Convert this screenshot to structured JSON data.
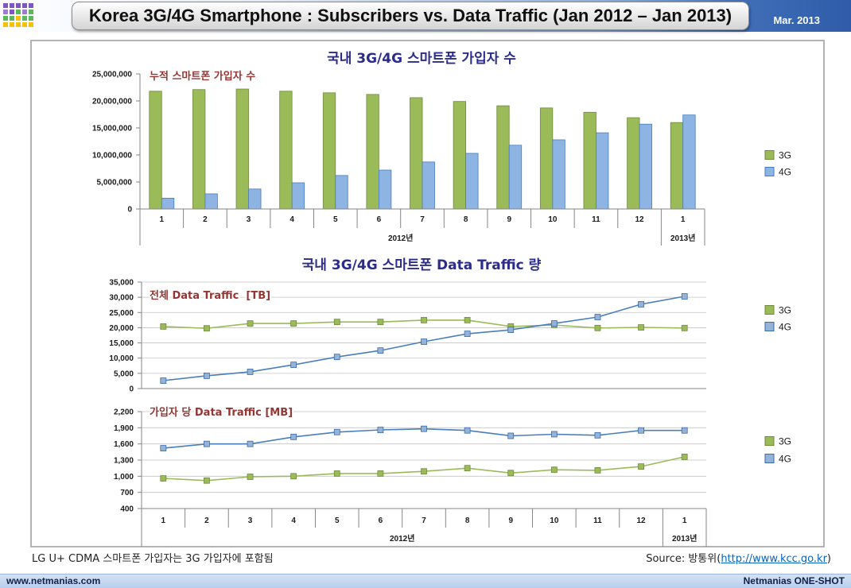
{
  "header": {
    "title": "Korea 3G/4G Smartphone : Subscribers vs. Data Traffic (Jan 2012 – Jan 2013)",
    "date": "Mar. 2013"
  },
  "chart_data": [
    {
      "type": "bar",
      "title": "국내 3G/4G 스마트폰 가입자 수",
      "subtitle": "누적 스마트폰 가입자 수",
      "categories": [
        "1",
        "2",
        "3",
        "4",
        "5",
        "6",
        "7",
        "8",
        "9",
        "10",
        "11",
        "12",
        "1"
      ],
      "groups": [
        {
          "label": "2012년",
          "count": 12
        },
        {
          "label": "2013년",
          "count": 1
        }
      ],
      "series": [
        {
          "name": "3G",
          "color": "#9bbb59",
          "border": "#71893f",
          "values": [
            21800000,
            22100000,
            22200000,
            21800000,
            21500000,
            21200000,
            20600000,
            19900000,
            19100000,
            18700000,
            17900000,
            16900000,
            16000000
          ]
        },
        {
          "name": "4G",
          "color": "#8eb4e3",
          "border": "#4a7ebb",
          "values": [
            2000000,
            2800000,
            3700000,
            4850000,
            6200000,
            7200000,
            8700000,
            10300000,
            11800000,
            12800000,
            14100000,
            15700000,
            17400000
          ]
        }
      ],
      "ylim": [
        0,
        25000000
      ],
      "yticks": [
        0,
        5000000,
        10000000,
        15000000,
        20000000,
        25000000
      ],
      "grid": false,
      "legend": "right"
    },
    {
      "type": "line",
      "title": "국내 3G/4G 스마트폰 Data Traffic 량",
      "categories": [
        "1",
        "2",
        "3",
        "4",
        "5",
        "6",
        "7",
        "8",
        "9",
        "10",
        "11",
        "12",
        "1"
      ],
      "groups": [
        {
          "label": "2012년",
          "count": 12
        },
        {
          "label": "2013년",
          "count": 1
        }
      ],
      "legend": "right",
      "panels": [
        {
          "subtitle": "전체 Data Traffic  [TB]",
          "ylim": [
            0,
            35000
          ],
          "yticks": [
            0,
            5000,
            10000,
            15000,
            20000,
            25000,
            30000,
            35000
          ],
          "grid": true,
          "series": [
            {
              "name": "3G",
              "color": "#9bbb59",
              "marker_color": "#9bbb59",
              "border": "#71893f",
              "values": [
                20400,
                19800,
                21400,
                21400,
                21900,
                21900,
                22500,
                22500,
                20400,
                20900,
                19900,
                20100,
                19900
              ]
            },
            {
              "name": "4G",
              "color": "#4a7ebb",
              "marker_color": "#95b3d7",
              "border": "#3a6aa8",
              "values": [
                2600,
                4200,
                5500,
                7800,
                10400,
                12500,
                15400,
                18000,
                19300,
                21400,
                23500,
                27700,
                30300
              ]
            }
          ]
        },
        {
          "subtitle": "가입자 당 Data Traffic [MB]",
          "ylim": [
            400,
            2200
          ],
          "yticks": [
            400,
            700,
            1000,
            1300,
            1600,
            1900,
            2200
          ],
          "grid": true,
          "series": [
            {
              "name": "3G",
              "color": "#9bbb59",
              "marker_color": "#9bbb59",
              "border": "#71893f",
              "values": [
                960,
                920,
                990,
                1000,
                1050,
                1050,
                1090,
                1150,
                1060,
                1120,
                1110,
                1180,
                1360
              ]
            },
            {
              "name": "4G",
              "color": "#4a7ebb",
              "marker_color": "#95b3d7",
              "border": "#3a6aa8",
              "values": [
                1520,
                1600,
                1600,
                1730,
                1820,
                1860,
                1880,
                1850,
                1750,
                1780,
                1760,
                1850,
                1850
              ]
            }
          ]
        }
      ]
    }
  ],
  "note": "LG U+ CDMA 스마트폰 가입자는 3G 가입자에 포함됨",
  "source": {
    "prefix": "Source: 방통위(",
    "link": "http://www.kcc.go.kr",
    "suffix": ")"
  },
  "footer": {
    "site": "www.netmanias.com",
    "brand": "Netmanias ONE-SHOT"
  }
}
